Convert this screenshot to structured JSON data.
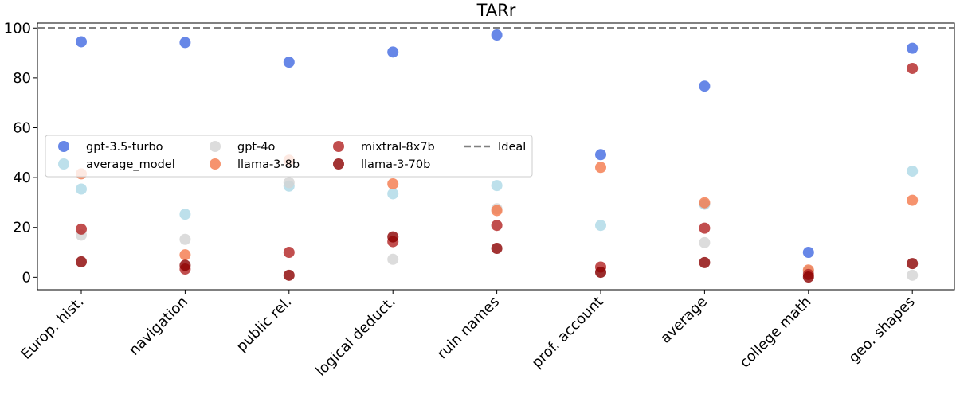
{
  "chart_data": {
    "type": "scatter",
    "title": "TARr",
    "xlabel": "",
    "ylabel": "",
    "ylim": [
      -5,
      102
    ],
    "yticks": [
      0,
      20,
      40,
      60,
      80,
      100
    ],
    "ytick_labels": [
      "0",
      "20",
      "40",
      "60",
      "80",
      "100"
    ],
    "categories": [
      "Europ. hist.",
      "navigation",
      "public rel.",
      "logical deduct.",
      "ruin names",
      "prof. account",
      "average",
      "college math",
      "geo. shapes"
    ],
    "ideal": {
      "name": "Ideal",
      "value": 100,
      "color": "#808080"
    },
    "legend_position": "center-left",
    "series": [
      {
        "name": "gpt-3.5-turbo",
        "color": "#4169e1",
        "values": [
          94.5,
          94.2,
          86.3,
          90.4,
          97.2,
          49.2,
          76.7,
          10.0,
          91.9
        ]
      },
      {
        "name": "average_model",
        "color": "#add8e6",
        "values": [
          35.4,
          25.3,
          36.6,
          33.5,
          36.8,
          20.8,
          29.3,
          2.5,
          42.6
        ]
      },
      {
        "name": "gpt-4o",
        "color": "#d3d3d3",
        "values": [
          16.9,
          15.2,
          38.0,
          7.2,
          27.5,
          2.0,
          13.9,
          2.2,
          0.8
        ]
      },
      {
        "name": "llama-3-8b",
        "color": "#f4784a",
        "values": [
          41.5,
          9.0,
          47.0,
          37.5,
          26.8,
          44.1,
          29.9,
          2.9,
          30.9
        ]
      },
      {
        "name": "mixtral-8x7b",
        "color": "#b22222",
        "values": [
          19.3,
          3.3,
          10.0,
          14.3,
          20.8,
          4.1,
          19.7,
          1.1,
          83.8
        ]
      },
      {
        "name": "llama-3-70b",
        "color": "#8b0000",
        "values": [
          6.2,
          4.8,
          0.8,
          16.2,
          11.6,
          2.0,
          5.9,
          0.1,
          5.5
        ]
      }
    ]
  }
}
